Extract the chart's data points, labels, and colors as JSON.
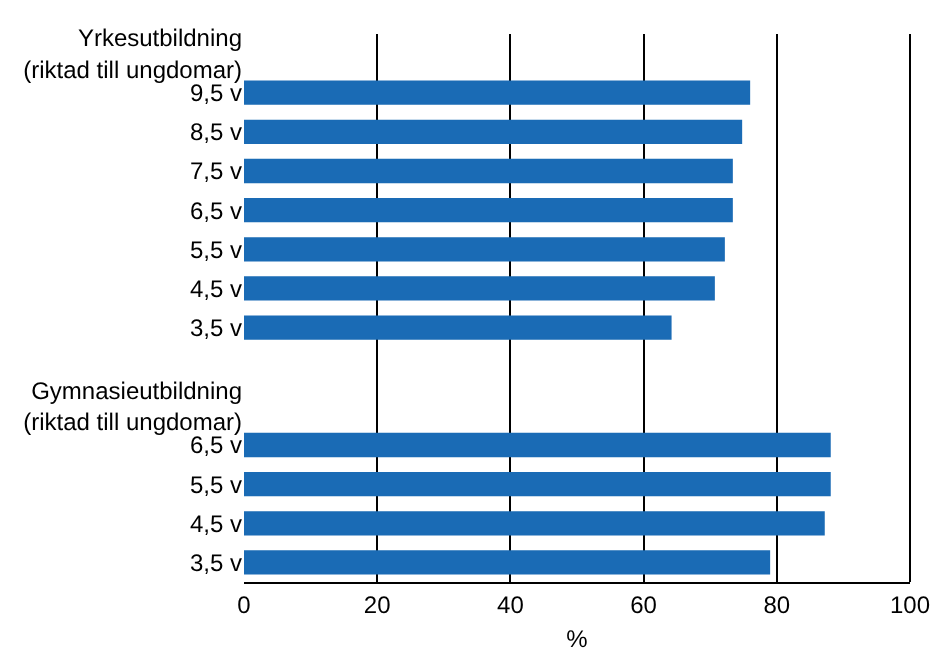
{
  "chart_data": {
    "type": "bar",
    "orientation": "horizontal",
    "xlabel": "%",
    "categories": [
      "Yrkesutbildning\n(riktad till ungdomar)",
      "9,5 v",
      "8,5 v",
      "7,5 v",
      "6,5 v",
      "5,5 v",
      "4,5 v",
      "3,5 v",
      null,
      "Gymnasieutbildning\n(riktad till ungdomar)",
      "6,5 v",
      "5,5 v",
      "4,5 v",
      "3,5 v"
    ],
    "values": [
      null,
      76.0,
      74.8,
      73.4,
      73.4,
      72.2,
      70.7,
      64.2,
      null,
      null,
      88.1,
      88.1,
      87.2,
      79.0
    ],
    "color": "#1a6bb5",
    "xlim": [
      0,
      100
    ],
    "xticks": [
      0,
      20,
      40,
      60,
      80,
      100
    ],
    "grid": "x"
  }
}
